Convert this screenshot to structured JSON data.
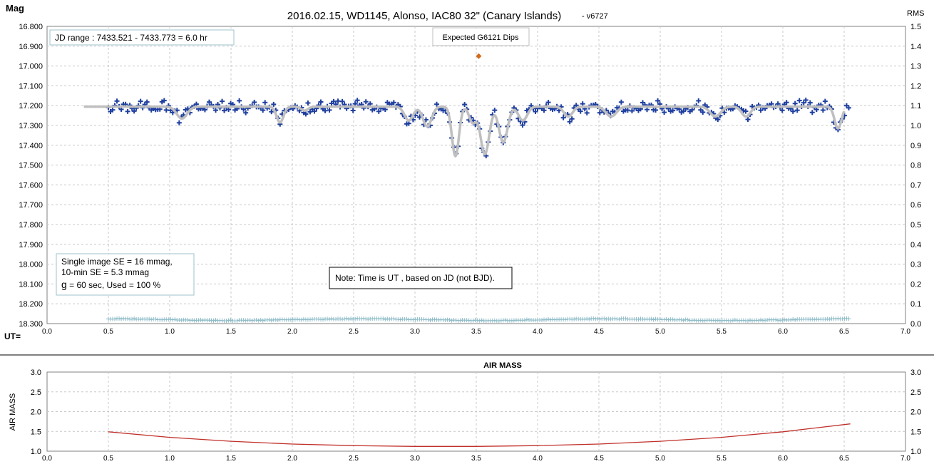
{
  "chart_data": [
    {
      "type": "scatter",
      "title": "2016.02.15,  WD1145, Alonso,  IAC80 32\" (Canary Islands)",
      "title_suffix": "- v6727",
      "ylabel": "Mag",
      "y2label": "RMS",
      "xlabel": "UT=",
      "xlim": [
        0,
        7
      ],
      "ylim": [
        16.8,
        18.3
      ],
      "y_inverted": true,
      "y2lim": [
        0,
        1.5
      ],
      "x_ticks": [
        "0.0",
        "0.5",
        "1.0",
        "1.5",
        "2.0",
        "2.5",
        "3.0",
        "3.5",
        "4.0",
        "4.5",
        "5.0",
        "5.5",
        "6.0",
        "6.5",
        "7.0"
      ],
      "y_ticks": [
        "16.800",
        "16.900",
        "17.000",
        "17.100",
        "17.200",
        "17.300",
        "17.400",
        "17.500",
        "17.600",
        "17.700",
        "17.800",
        "17.900",
        "18.000",
        "18.100",
        "18.200",
        "18.300"
      ],
      "y2_ticks": [
        "1.5",
        "1.4",
        "1.3",
        "1.2",
        "1.1",
        "1.0",
        "0.9",
        "0.8",
        "0.7",
        "0.6",
        "0.5",
        "0.4",
        "0.3",
        "0.2",
        "0.1",
        "0.0"
      ],
      "grid": true,
      "annotations": {
        "jd_range": "JD range  : 7433.521 - 7433.773  = 6.0 hr",
        "expected_dips": "Expected G6121 Dips",
        "se_line1": "Single image SE = 16 mmag,",
        "se_line2": "10-min SE = 5.3 mmag",
        "se_line3_prefix": "g",
        "se_line3": " = 60 sec, Used = 100  %",
        "note": "Note: Time is UT , based on JD (not BJD)."
      },
      "colors": {
        "data": "#1f3f9f",
        "model": "#bfbfbf",
        "rms": "#8fbcc8",
        "marker": "#d46a1a"
      },
      "model_baseline_mag": 17.205,
      "model_x_range": [
        0.3,
        6.5
      ],
      "data_x_range": [
        0.5,
        6.55
      ],
      "series": [
        {
          "name": "",
          "kind": "dips",
          "dips": [
            {
              "x": 1.1,
              "depth": 0.06,
              "w": 0.06
            },
            {
              "x": 1.9,
              "depth": 0.08,
              "w": 0.04
            },
            {
              "x": 2.1,
              "depth": 0.02,
              "w": 0.04
            },
            {
              "x": 2.95,
              "depth": 0.07,
              "w": 0.05
            },
            {
              "x": 3.1,
              "depth": 0.1,
              "w": 0.05
            },
            {
              "x": 3.33,
              "depth": 0.25,
              "w": 0.04
            },
            {
              "x": 3.47,
              "depth": 0.08,
              "w": 0.04
            },
            {
              "x": 3.57,
              "depth": 0.24,
              "w": 0.05
            },
            {
              "x": 3.72,
              "depth": 0.18,
              "w": 0.05
            },
            {
              "x": 3.88,
              "depth": 0.07,
              "w": 0.05
            },
            {
              "x": 4.25,
              "depth": 0.05,
              "w": 0.05
            },
            {
              "x": 4.6,
              "depth": 0.05,
              "w": 0.06
            },
            {
              "x": 5.45,
              "depth": 0.05,
              "w": 0.06
            },
            {
              "x": 5.7,
              "depth": 0.05,
              "w": 0.05
            },
            {
              "x": 6.45,
              "depth": 0.11,
              "w": 0.04
            }
          ]
        },
        {
          "name": "",
          "kind": "expected",
          "points": [
            [
              3.52,
              16.95
            ]
          ]
        },
        {
          "name": "",
          "kind": "rms",
          "level": 0.02
        }
      ]
    },
    {
      "type": "line",
      "title": "AIR MASS",
      "ylabel": "AIR MASS",
      "xlim": [
        0,
        7
      ],
      "ylim": [
        1.0,
        3.0
      ],
      "x_ticks": [
        "0.0",
        "0.5",
        "1.0",
        "1.5",
        "2.0",
        "2.5",
        "3.0",
        "3.5",
        "4.0",
        "4.5",
        "5.0",
        "5.5",
        "6.0",
        "6.5",
        "7.0"
      ],
      "y_ticks": [
        "3.0",
        "2.5",
        "2.0",
        "1.5",
        "1.0"
      ],
      "grid": true,
      "color": "#c0302a",
      "series": [
        {
          "name": "",
          "x": [
            0.5,
            1.0,
            1.5,
            2.0,
            2.5,
            3.0,
            3.5,
            4.0,
            4.5,
            5.0,
            5.5,
            6.0,
            6.55
          ],
          "y": [
            1.49,
            1.35,
            1.25,
            1.18,
            1.14,
            1.12,
            1.12,
            1.14,
            1.18,
            1.25,
            1.35,
            1.49,
            1.69
          ]
        }
      ]
    }
  ]
}
